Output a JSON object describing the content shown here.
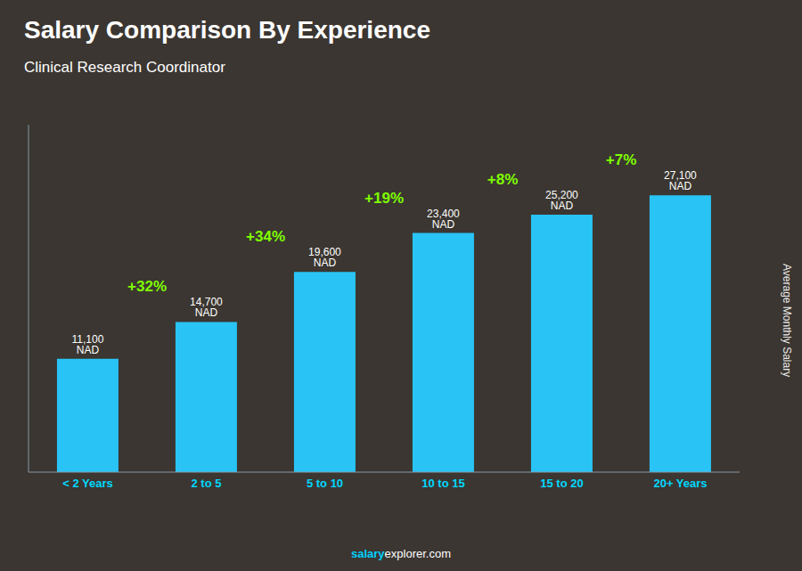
{
  "chart_data": {
    "type": "bar",
    "title": "Salary Comparison By Experience",
    "subtitle": "Clinical Research Coordinator",
    "categories": [
      "< 2 Years",
      "2 to 5",
      "5 to 10",
      "10 to 15",
      "15 to 20",
      "20+ Years"
    ],
    "values": [
      11100,
      14700,
      19600,
      23400,
      25200,
      27100
    ],
    "value_labels": [
      "11,100 NAD",
      "14,700 NAD",
      "19,600 NAD",
      "23,400 NAD",
      "25,200 NAD",
      "27,100 NAD"
    ],
    "data_labels": true,
    "annotations": [
      "+32%",
      "+34%",
      "+19%",
      "+8%",
      "+7%"
    ],
    "ylabel": "Average Monthly Salary",
    "footer": [
      "salary",
      "explorer.com"
    ],
    "color": "#29c4f5",
    "ylim": [
      0,
      34000
    ],
    "tick_labels": "x"
  }
}
